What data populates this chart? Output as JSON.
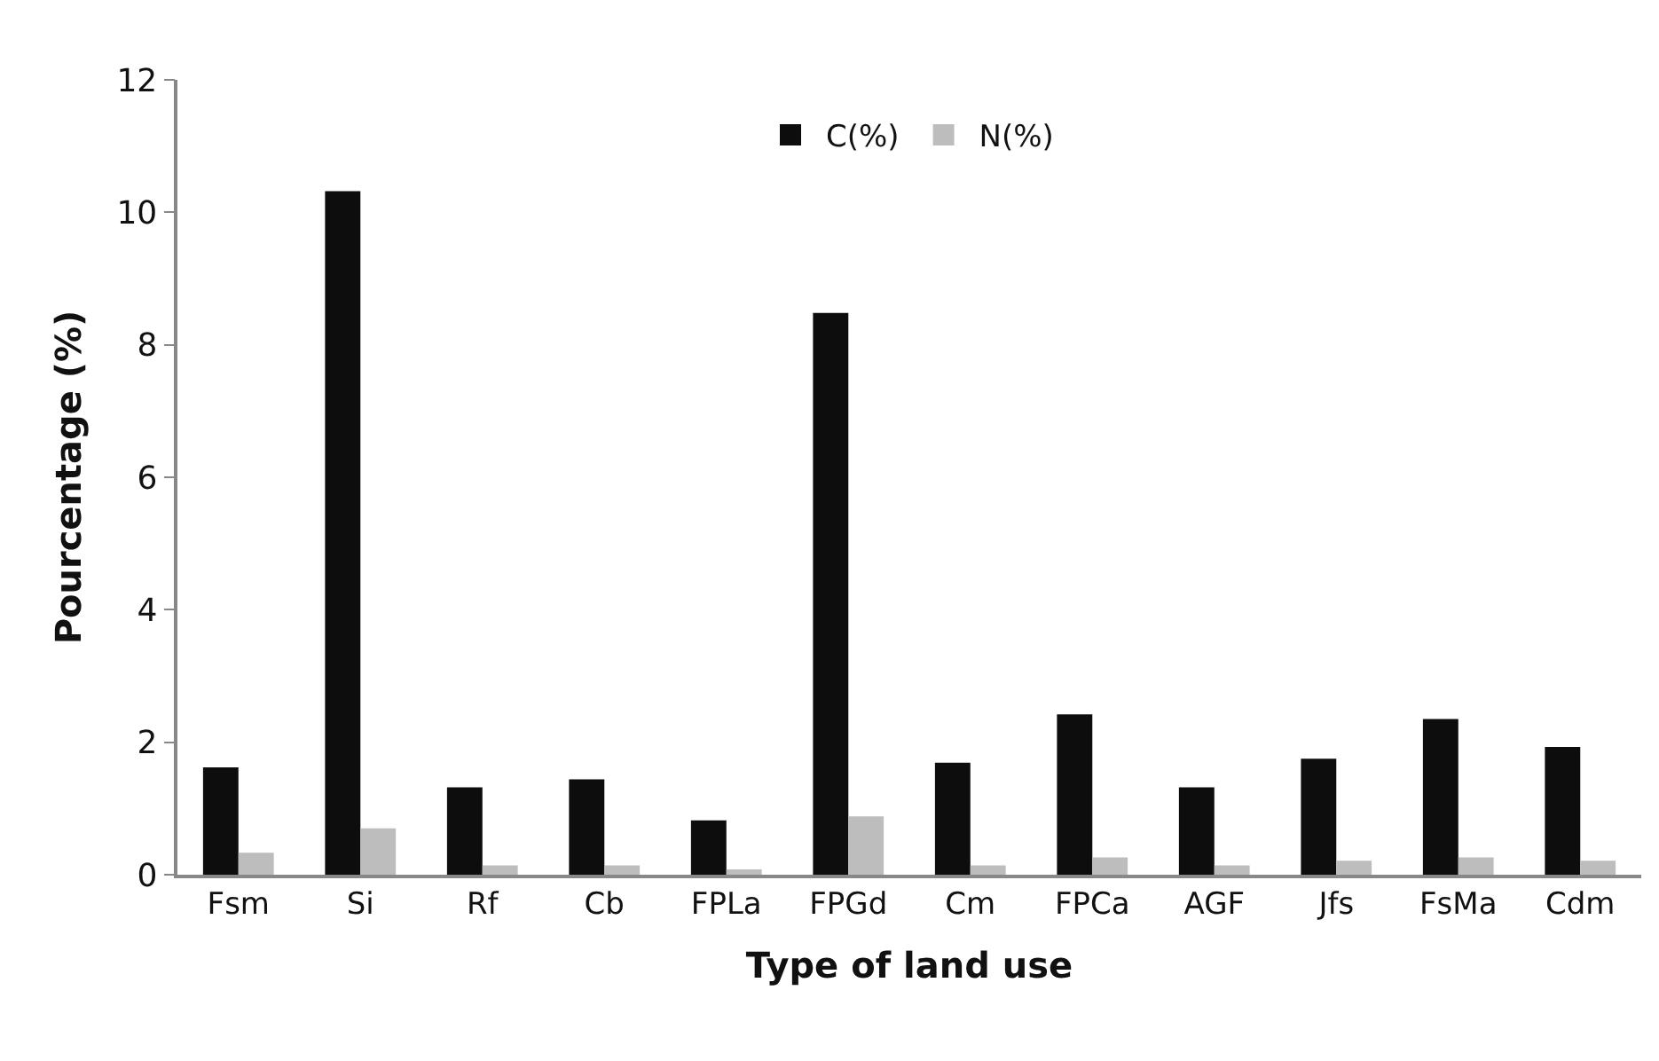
{
  "chart_data": {
    "type": "bar",
    "xlabel": "Type of land use",
    "ylabel": "Pourcentage (%)",
    "categories": [
      "Fsm",
      "Si",
      "Rf",
      "Cb",
      "FPLa",
      "FPGd",
      "Cm",
      "FPCa",
      "AGF",
      "Jfs",
      "FsMa",
      "Cdm"
    ],
    "series": [
      {
        "name": "C(%)",
        "color": "#0d0d0d",
        "values": [
          1.62,
          10.32,
          1.32,
          1.44,
          0.82,
          8.48,
          1.69,
          2.42,
          1.32,
          1.75,
          2.35,
          1.93
        ]
      },
      {
        "name": "N(%)",
        "color": "#bdbdbd",
        "values": [
          0.33,
          0.7,
          0.14,
          0.14,
          0.08,
          0.88,
          0.14,
          0.26,
          0.14,
          0.21,
          0.26,
          0.21
        ]
      }
    ],
    "ylim": [
      0,
      12
    ],
    "yticks": [
      0,
      2,
      4,
      6,
      8,
      10,
      12
    ],
    "legend": "top"
  }
}
